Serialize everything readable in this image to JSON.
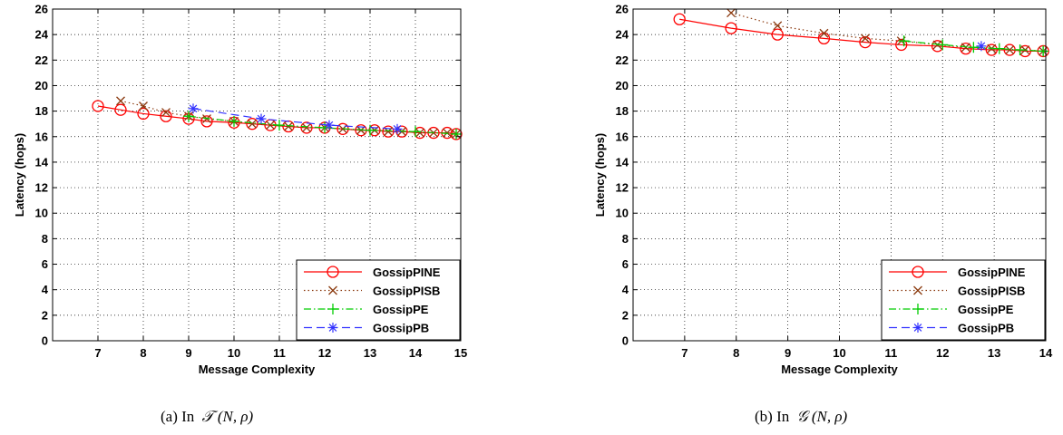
{
  "chart_data": [
    {
      "type": "line",
      "xlabel": "Message Complexity",
      "ylabel": "Latency (hops)",
      "xlim": [
        6,
        15
      ],
      "ylim": [
        0,
        26
      ],
      "xticks": [
        7,
        8,
        9,
        10,
        11,
        12,
        13,
        14,
        15
      ],
      "yticks": [
        0,
        2,
        4,
        6,
        8,
        10,
        12,
        14,
        16,
        18,
        20,
        22,
        24,
        26
      ],
      "grid": true,
      "legend_position": "bottom-right",
      "caption": {
        "prefix": "(a)",
        "text": "In",
        "math": "𝒯 (N, ρ)"
      },
      "series": [
        {
          "name": "GossipPINE",
          "color": "#ff0000",
          "marker": "circle",
          "line": "solid",
          "x": [
            7,
            7.5,
            8,
            8.5,
            9,
            9.4,
            10,
            10.4,
            10.8,
            11.2,
            11.6,
            12,
            12.4,
            12.8,
            13.1,
            13.4,
            13.7,
            14.1,
            14.4,
            14.7,
            14.9
          ],
          "y": [
            18.4,
            18.1,
            17.8,
            17.6,
            17.4,
            17.2,
            17.1,
            17.0,
            16.9,
            16.8,
            16.7,
            16.7,
            16.6,
            16.5,
            16.5,
            16.4,
            16.4,
            16.3,
            16.3,
            16.3,
            16.2
          ]
        },
        {
          "name": "GossipPISB",
          "color": "#8b3a0f",
          "marker": "x",
          "line": "dotted",
          "x": [
            7.5,
            8,
            8.5,
            9,
            9.4,
            10,
            10.4,
            10.8,
            11.2,
            11.6,
            12,
            12.4,
            12.8,
            13.1,
            13.4,
            13.7,
            14.1,
            14.4,
            14.7,
            14.9
          ],
          "y": [
            18.8,
            18.4,
            17.9,
            17.6,
            17.4,
            17.2,
            17.0,
            16.9,
            16.8,
            16.7,
            16.7,
            16.6,
            16.5,
            16.5,
            16.4,
            16.4,
            16.3,
            16.3,
            16.3,
            16.2
          ]
        },
        {
          "name": "GossipPE",
          "color": "#00cc00",
          "marker": "plus",
          "line": "dashdot",
          "x": [
            9,
            10,
            11,
            12,
            13,
            14,
            14.9
          ],
          "y": [
            17.6,
            17.2,
            16.9,
            16.7,
            16.5,
            16.4,
            16.2
          ]
        },
        {
          "name": "GossipPB",
          "color": "#3333ff",
          "marker": "star",
          "line": "dashed",
          "x": [
            9.1,
            10.6,
            12.1,
            13.6
          ],
          "y": [
            18.2,
            17.4,
            16.9,
            16.6
          ]
        }
      ]
    },
    {
      "type": "line",
      "xlabel": "Message Complexity",
      "ylabel": "Latency (hops)",
      "xlim": [
        6,
        14
      ],
      "ylim": [
        0,
        26
      ],
      "xticks": [
        7,
        8,
        9,
        10,
        11,
        12,
        13,
        14
      ],
      "yticks": [
        0,
        2,
        4,
        6,
        8,
        10,
        12,
        14,
        16,
        18,
        20,
        22,
        24,
        26
      ],
      "grid": true,
      "legend_position": "bottom-right",
      "caption": {
        "prefix": "(b)",
        "text": "In",
        "math": "𝒢 (N, ρ)"
      },
      "series": [
        {
          "name": "GossipPINE",
          "color": "#ff0000",
          "marker": "circle",
          "line": "solid",
          "x": [
            6.9,
            7.9,
            8.8,
            9.7,
            10.5,
            11.2,
            11.9,
            12.45,
            12.95,
            13.3,
            13.6,
            13.95
          ],
          "y": [
            25.2,
            24.5,
            24.0,
            23.7,
            23.4,
            23.2,
            23.1,
            22.9,
            22.8,
            22.8,
            22.7,
            22.7
          ]
        },
        {
          "name": "GossipPISB",
          "color": "#8b3a0f",
          "marker": "x",
          "line": "dotted",
          "x": [
            7.9,
            8.8,
            9.7,
            10.5,
            11.2,
            11.9,
            12.45,
            12.95,
            13.3,
            13.6,
            13.95
          ],
          "y": [
            25.7,
            24.7,
            24.1,
            23.7,
            23.5,
            23.2,
            23.0,
            22.9,
            22.8,
            22.8,
            22.7
          ]
        },
        {
          "name": "GossipPE",
          "color": "#00cc00",
          "marker": "plus",
          "line": "dashdot",
          "x": [
            11.25,
            12.0,
            12.6,
            13.1,
            13.5,
            13.95
          ],
          "y": [
            23.5,
            23.2,
            23.0,
            22.9,
            22.8,
            22.7
          ]
        },
        {
          "name": "GossipPB",
          "color": "#3333ff",
          "marker": "star",
          "line": "dashed",
          "x": [
            12.75
          ],
          "y": [
            23.1
          ]
        }
      ]
    }
  ]
}
